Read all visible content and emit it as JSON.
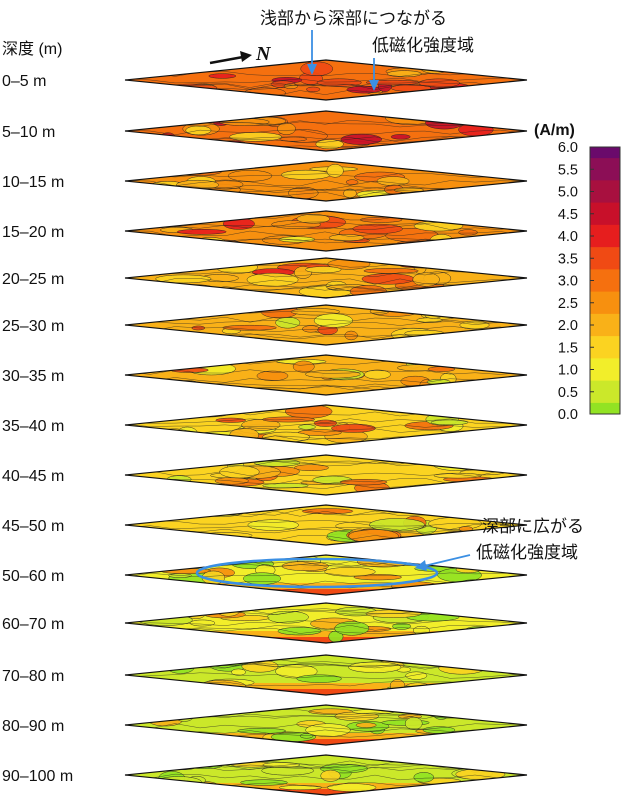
{
  "header": {
    "depth_axis_label": "深度 (m)",
    "north_label": "N"
  },
  "layers": [
    {
      "depth": "0–5 m",
      "level": 3.0
    },
    {
      "depth": "5–10 m",
      "level": 2.8
    },
    {
      "depth": "10–15 m",
      "level": 2.6
    },
    {
      "depth": "15–20 m",
      "level": 2.4
    },
    {
      "depth": "20–25 m",
      "level": 2.2
    },
    {
      "depth": "25–30 m",
      "level": 2.0
    },
    {
      "depth": "30–35 m",
      "level": 1.9
    },
    {
      "depth": "35–40 m",
      "level": 1.7
    },
    {
      "depth": "40–45 m",
      "level": 1.5
    },
    {
      "depth": "45–50 m",
      "level": 1.3
    },
    {
      "depth": "50–60 m",
      "level": 1.0
    },
    {
      "depth": "60–70 m",
      "level": 0.8
    },
    {
      "depth": "70–80 m",
      "level": 0.6
    },
    {
      "depth": "80–90 m",
      "level": 0.4
    },
    {
      "depth": "90–100 m",
      "level": 0.3
    }
  ],
  "annotations": {
    "top": {
      "line1": "浅部から深部につながる",
      "line2": "低磁化強度域"
    },
    "bottom": {
      "line1": "深部に広がる",
      "line2": "低磁化強度域"
    }
  },
  "colorbar": {
    "unit": "(A/m)",
    "ticks": [
      "6.0",
      "5.5",
      "5.0",
      "4.5",
      "4.0",
      "3.5",
      "3.0",
      "2.5",
      "2.0",
      "1.5",
      "1.0",
      "0.5",
      "0.0"
    ],
    "colors": [
      "#6a0a6b",
      "#8c0e56",
      "#a8103f",
      "#c8102a",
      "#e61e1e",
      "#f04a14",
      "#f5700f",
      "#f7900f",
      "#f9b118",
      "#fbd321",
      "#f2ee2a",
      "#cbe82a",
      "#92e323"
    ]
  },
  "accent": {
    "annotation_blue": "#3b8fe3"
  }
}
